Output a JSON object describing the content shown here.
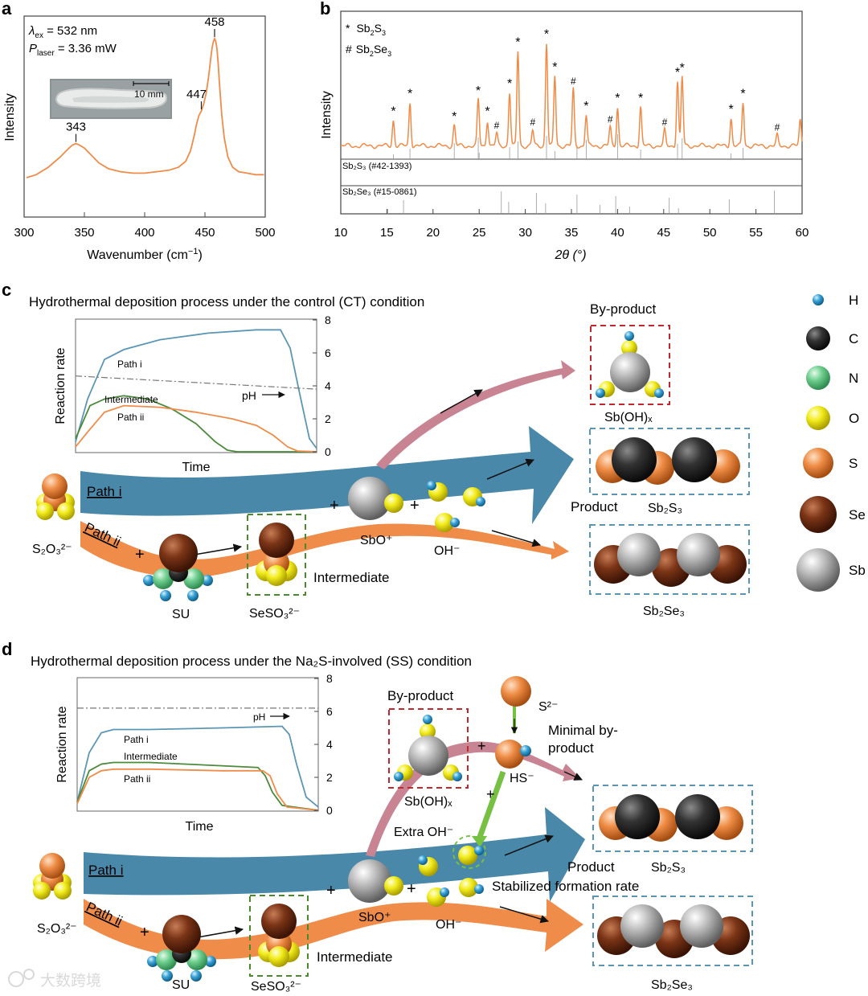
{
  "panels": {
    "a": "a",
    "b": "b",
    "c": "c",
    "d": "d"
  },
  "panel_a": {
    "ex_label": "λ",
    "ex_sub": "ex",
    "ex_value": " = 532 nm",
    "laser_label": "P",
    "laser_sub": "laser",
    "laser_value": " = 3.36 mW",
    "scale_bar": "10 mm",
    "ylabel": "Intensity",
    "xlabel": "Wavenumber (cm",
    "xlabel_sup": "−1",
    "xlabel_end": ")"
  },
  "panel_b": {
    "legend": [
      {
        "symbol": "*",
        "name": "Sb",
        "sub1": "2",
        "mid": "S",
        "sub2": "3"
      },
      {
        "symbol": "#",
        "name": "Sb",
        "sub1": "2",
        "mid": "Se",
        "sub2": "3"
      }
    ],
    "ylabel": "Intensity",
    "ref1": "Sb₂S₃ (#42-1393)",
    "ref2": "Sb₂Se₃ (#15-0861)",
    "xlabel": "2θ (°)"
  },
  "chart_data": [
    {
      "type": "line",
      "title": "",
      "xlabel": "Wavenumber (cm−1)",
      "ylabel": "Intensity",
      "xlim": [
        300,
        500
      ],
      "xticks": [
        300,
        350,
        400,
        450,
        500
      ],
      "color": "#ef8c4a",
      "peak_labels": [
        {
          "x": 343,
          "label": "343"
        },
        {
          "x": 447,
          "label": "447"
        },
        {
          "x": 458,
          "label": "458"
        }
      ],
      "x": [
        302,
        310,
        320,
        330,
        336,
        340,
        343,
        346,
        350,
        356,
        362,
        370,
        380,
        390,
        400,
        410,
        420,
        428,
        434,
        438,
        441,
        443,
        445,
        447,
        449,
        451,
        453,
        455,
        456,
        457,
        458,
        459,
        460,
        461,
        462,
        464,
        466,
        469,
        473,
        478,
        485,
        492,
        499
      ],
      "y": [
        0.06,
        0.08,
        0.13,
        0.2,
        0.25,
        0.28,
        0.29,
        0.28,
        0.26,
        0.21,
        0.16,
        0.12,
        0.1,
        0.09,
        0.09,
        0.1,
        0.11,
        0.13,
        0.17,
        0.24,
        0.34,
        0.42,
        0.48,
        0.51,
        0.56,
        0.63,
        0.74,
        0.88,
        0.94,
        0.98,
        1.0,
        0.98,
        0.93,
        0.83,
        0.7,
        0.48,
        0.33,
        0.2,
        0.13,
        0.1,
        0.09,
        0.08,
        0.08
      ]
    },
    {
      "type": "line",
      "title": "",
      "xlabel": "2θ (°)",
      "ylabel": "Intensity",
      "xlim": [
        10,
        60
      ],
      "xticks": [
        10,
        15,
        20,
        25,
        30,
        35,
        40,
        45,
        50,
        55,
        60
      ],
      "color": "#ef8c4a",
      "peaks": [
        {
          "x": 15.7,
          "h": 0.25,
          "mark": "*"
        },
        {
          "x": 17.5,
          "h": 0.42,
          "mark": "*"
        },
        {
          "x": 22.3,
          "h": 0.2,
          "mark": "*"
        },
        {
          "x": 24.9,
          "h": 0.45,
          "mark": "*"
        },
        {
          "x": 25.9,
          "h": 0.25,
          "mark": "*"
        },
        {
          "x": 26.9,
          "h": 0.12,
          "mark": "#"
        },
        {
          "x": 28.3,
          "h": 0.52,
          "mark": "*"
        },
        {
          "x": 29.2,
          "h": 0.92,
          "mark": "*"
        },
        {
          "x": 30.8,
          "h": 0.15,
          "mark": "#"
        },
        {
          "x": 32.3,
          "h": 1.0,
          "mark": "*"
        },
        {
          "x": 33.2,
          "h": 0.68,
          "mark": "*"
        },
        {
          "x": 35.2,
          "h": 0.55,
          "mark": "#"
        },
        {
          "x": 36.6,
          "h": 0.3,
          "mark": "*"
        },
        {
          "x": 39.2,
          "h": 0.18,
          "mark": "#"
        },
        {
          "x": 40.0,
          "h": 0.38,
          "mark": "*"
        },
        {
          "x": 42.5,
          "h": 0.38,
          "mark": "*"
        },
        {
          "x": 45.1,
          "h": 0.15,
          "mark": "#"
        },
        {
          "x": 46.5,
          "h": 0.63,
          "mark": "*"
        },
        {
          "x": 47.0,
          "h": 0.67,
          "mark": "*"
        },
        {
          "x": 52.3,
          "h": 0.27,
          "mark": "*"
        },
        {
          "x": 53.6,
          "h": 0.42,
          "mark": "*"
        },
        {
          "x": 57.3,
          "h": 0.1,
          "mark": "#"
        },
        {
          "x": 59.8,
          "h": 0.25,
          "mark": ""
        }
      ],
      "ref_sb2s3": [
        15.7,
        17.5,
        22.3,
        24.9,
        25.0,
        28.3,
        29.2,
        32.3,
        33.2,
        35.6,
        36.6,
        40.0,
        42.5,
        46.5,
        47.0,
        52.3,
        53.6
      ],
      "ref_sb2se3": [
        15.1,
        16.8,
        27.4,
        28.2,
        31.2,
        32.2,
        35.6,
        38.1,
        39.8,
        41.3,
        45.6,
        46.6,
        52.1,
        57.0
      ]
    },
    {
      "type": "line",
      "title": "",
      "xlabel": "Time",
      "ylabel": "Reaction rate",
      "ylim": [
        0,
        8
      ],
      "yticks": [
        0,
        2,
        4,
        6,
        8
      ],
      "series": [
        {
          "name": "Path i",
          "color": "#5b97b4",
          "x": [
            0,
            0.05,
            0.12,
            0.2,
            0.35,
            0.55,
            0.75,
            0.85,
            0.89,
            0.93,
            0.97,
            1.0
          ],
          "values": [
            0.6,
            3.2,
            5.6,
            6.2,
            6.8,
            7.2,
            7.4,
            7.4,
            6.3,
            3.5,
            0.8,
            0.2
          ]
        },
        {
          "name": "Intermediate",
          "color": "#4c8a3c",
          "x": [
            0,
            0.06,
            0.12,
            0.2,
            0.3,
            0.4,
            0.5,
            0.58,
            0.63,
            0.67,
            1.0
          ],
          "values": [
            0.8,
            2.8,
            3.2,
            3.4,
            3.2,
            2.6,
            1.7,
            0.6,
            0.1,
            0.0,
            0.0
          ]
        },
        {
          "name": "Path ii",
          "color": "#ef8c4a",
          "x": [
            0,
            0.05,
            0.12,
            0.2,
            0.35,
            0.5,
            0.65,
            0.75,
            0.82,
            0.88,
            0.92,
            1.0
          ],
          "values": [
            0.3,
            1.2,
            2.4,
            2.8,
            2.7,
            2.4,
            2.0,
            1.6,
            1.0,
            0.3,
            0.05,
            0.0
          ]
        },
        {
          "name": "pH",
          "color": "#777777",
          "dash": true,
          "x": [
            0,
            1.0
          ],
          "values": [
            4.6,
            3.8
          ]
        }
      ],
      "annotation": "pH"
    },
    {
      "type": "line",
      "title": "",
      "xlabel": "Time",
      "ylabel": "Reaction rate",
      "ylim": [
        0,
        8
      ],
      "yticks": [
        0,
        2,
        4,
        6,
        8
      ],
      "series": [
        {
          "name": "Path i",
          "color": "#5b97b4",
          "x": [
            0,
            0.05,
            0.1,
            0.15,
            0.3,
            0.6,
            0.85,
            0.88,
            0.91,
            0.95,
            1.0
          ],
          "values": [
            0.5,
            3.5,
            4.7,
            4.9,
            4.9,
            5.0,
            5.1,
            4.6,
            2.8,
            0.8,
            0.2
          ]
        },
        {
          "name": "Intermediate",
          "color": "#4c8a3c",
          "x": [
            0,
            0.05,
            0.1,
            0.15,
            0.3,
            0.6,
            0.75,
            0.78,
            0.81,
            0.85,
            1.0
          ],
          "values": [
            0.5,
            2.4,
            2.8,
            2.9,
            2.9,
            2.7,
            2.6,
            2.1,
            1.1,
            0.3,
            0.0
          ]
        },
        {
          "name": "Path ii",
          "color": "#ef8c4a",
          "x": [
            0,
            0.05,
            0.1,
            0.15,
            0.3,
            0.6,
            0.77,
            0.8,
            0.83,
            0.87,
            1.0
          ],
          "values": [
            0.4,
            2.0,
            2.4,
            2.5,
            2.5,
            2.4,
            2.4,
            2.1,
            1.0,
            0.2,
            0.0
          ]
        },
        {
          "name": "pH",
          "color": "#777777",
          "dash": true,
          "x": [
            0,
            1.0
          ],
          "values": [
            6.2,
            6.2
          ]
        }
      ],
      "annotation": "pH"
    }
  ],
  "panel_c": {
    "title": "Hydrothermal deposition process under the control (CT) condition",
    "ylabel": "Reaction rate",
    "xlabel": "Time",
    "label_path_i": "Path i",
    "label_intermediate": "Intermediate",
    "label_path_ii": "Path ii",
    "label_ph": "pH",
    "byproduct": "By-product",
    "byproduct_formula": "Sb(OH)ₓ",
    "product": "Product",
    "sb2s3": "Sb₂S₃",
    "sb2se3": "Sb₂Se₃",
    "s2o3": "S₂O₃²⁻",
    "su": "SU",
    "seso3": "SeSO₃²⁻",
    "intermediate": "Intermediate",
    "sbo": "SbO⁺",
    "oh": "OH⁻",
    "arrow_path_i": "Path i",
    "arrow_path_ii": "Path ii",
    "plus": "+"
  },
  "panel_d": {
    "title": "Hydrothermal deposition process under the Na₂S-involved (SS) condition",
    "ylabel": "Reaction rate",
    "xlabel": "Time",
    "label_path_i": "Path i",
    "label_intermediate": "Intermediate",
    "label_path_ii": "Path ii",
    "label_ph": "pH",
    "byproduct": "By-product",
    "byproduct_formula": "Sb(OH)ₓ",
    "s2": "S²⁻",
    "hs": "HS⁻",
    "minimal": "Minimal by-",
    "minimal2": "product",
    "extra_oh": "Extra OH⁻",
    "product": "Product",
    "sb2s3": "Sb₂S₃",
    "sb2se3": "Sb₂Se₃",
    "stabilized": "Stabilized formation rate",
    "s2o3": "S₂O₃²⁻",
    "su": "SU",
    "seso3": "SeSO₃²⁻",
    "intermediate": "Intermediate",
    "sbo": "SbO⁺",
    "oh": "OH⁻",
    "arrow_path_i": "Path i",
    "arrow_path_ii": "Path ii",
    "plus": "+"
  },
  "legend_atoms": [
    {
      "symbol": "H",
      "color": "#3ba3d6"
    },
    {
      "symbol": "C",
      "color": "#2a2a2a"
    },
    {
      "symbol": "N",
      "color": "#6fcf8f"
    },
    {
      "symbol": "O",
      "color": "#f2ec1c"
    },
    {
      "symbol": "S",
      "color": "#ee8c45"
    },
    {
      "symbol": "Se",
      "color": "#7a3416"
    },
    {
      "symbol": "Sb",
      "color": "#b8b8b8"
    }
  ],
  "watermark": "大数跨境"
}
